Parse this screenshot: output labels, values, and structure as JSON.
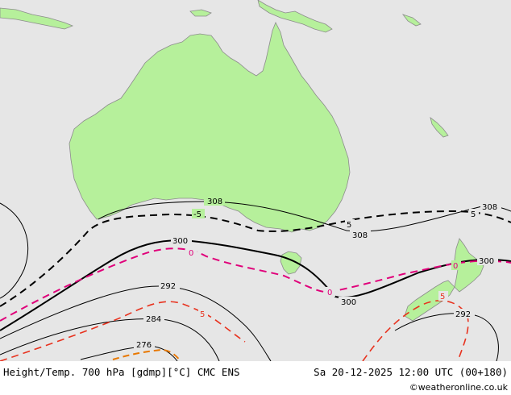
{
  "footer": {
    "left": "Height/Temp. 700 hPa [gdmp][°C] CMC ENS",
    "right": "Sa 20-12-2025 12:00 UTC (00+180)",
    "credit": "©weatheronline.co.uk"
  },
  "colors": {
    "sea": "#e6e6e6",
    "land": "#b6f09b",
    "coast": "#969696",
    "height_contour": "#000000",
    "temp_minus5": "#000000",
    "temp_0": "#e0007a",
    "temp_5": "#e8321e",
    "temp_10": "#e87800"
  },
  "height_labels": [
    "308",
    "308",
    "308",
    "300",
    "300",
    "300",
    "292",
    "292",
    "284",
    "276"
  ],
  "temp_labels": [
    "-5",
    "5",
    "5",
    "0",
    "0",
    "0",
    "5",
    "5"
  ]
}
